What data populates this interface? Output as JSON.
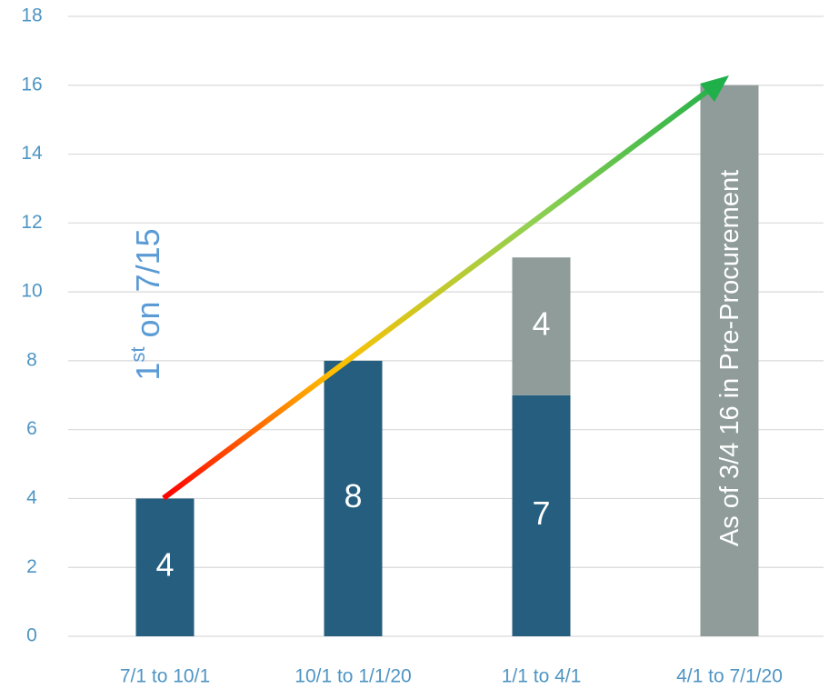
{
  "chart_data": {
    "type": "stacked_bar",
    "categories": [
      "7/1 to 10/1",
      "10/1 to 1/1/20",
      "1/1 to 4/1",
      "4/1 to 7/1/20"
    ],
    "series": [
      {
        "color": "#255e7e",
        "values": [
          4,
          8,
          7,
          null
        ]
      },
      {
        "color": "#8f9c9a",
        "values": [
          null,
          null,
          4,
          16
        ],
        "value_labels": [
          null,
          null,
          "4",
          null
        ]
      }
    ],
    "ylim": [
      0,
      18
    ],
    "yticks": [
      0,
      2,
      4,
      6,
      8,
      10,
      12,
      14,
      16,
      18
    ],
    "grid": true,
    "annotations": [
      {
        "text": "1",
        "sup": "st",
        "rest": " on 7/15"
      },
      {
        "text": "As of 3/4 16 in Pre-Procurement"
      }
    ]
  }
}
